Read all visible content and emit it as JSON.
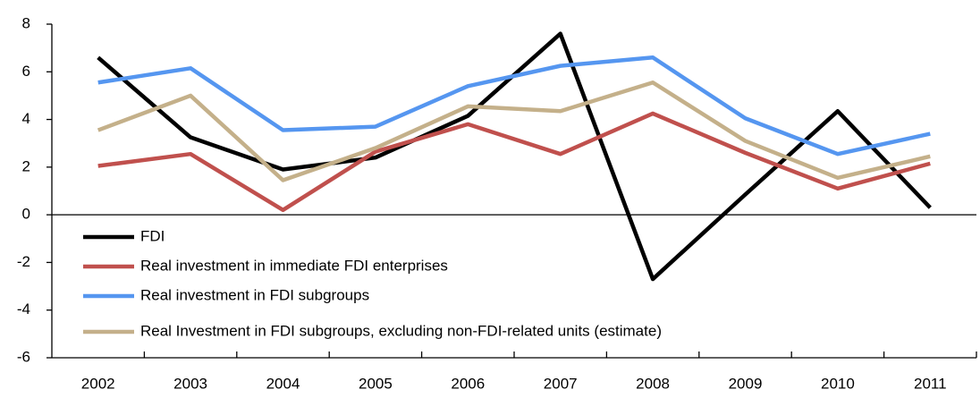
{
  "chart_data": {
    "type": "line",
    "categories": [
      "2002",
      "2003",
      "2004",
      "2005",
      "2006",
      "2007",
      "2008",
      "2009",
      "2010",
      "2011"
    ],
    "series": [
      {
        "name": "FDI",
        "color": "#000000",
        "values": [
          6.6,
          3.25,
          1.9,
          2.4,
          4.15,
          7.6,
          -2.7,
          0.85,
          4.35,
          0.3
        ]
      },
      {
        "name": "Real investment in immediate FDI enterprises",
        "color": "#c0504d",
        "values": [
          2.05,
          2.55,
          0.2,
          2.65,
          3.8,
          2.55,
          4.25,
          2.6,
          1.1,
          2.15
        ]
      },
      {
        "name": "Real investment in FDI subgroups",
        "color": "#5596f0",
        "values": [
          5.55,
          6.15,
          3.55,
          3.7,
          5.4,
          6.25,
          6.6,
          4.05,
          2.55,
          3.4
        ]
      },
      {
        "name": "Real Investment in FDI subgroups, excluding non-FDI-related units (estimate)",
        "color": "#c4b08a",
        "values": [
          3.55,
          5.0,
          1.45,
          2.8,
          4.55,
          4.35,
          5.55,
          3.1,
          1.55,
          2.45
        ]
      }
    ],
    "ylim": [
      -6,
      8
    ],
    "yticks": [
      -6,
      -4,
      -2,
      0,
      2,
      4,
      6,
      8
    ],
    "legend": "lower-left"
  }
}
